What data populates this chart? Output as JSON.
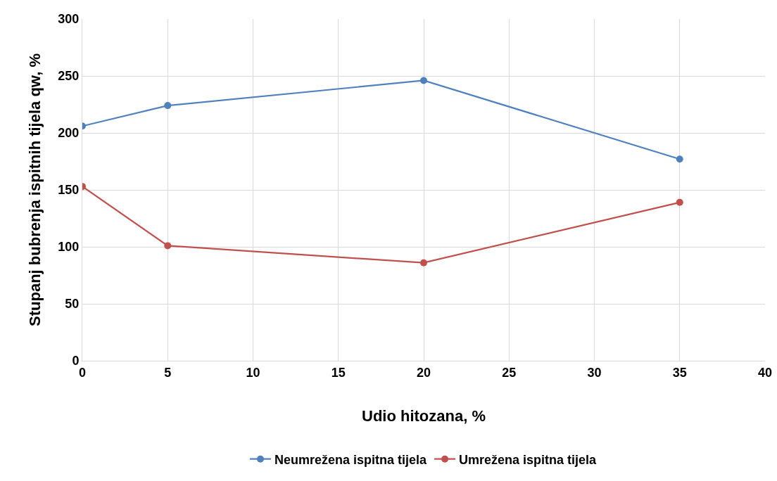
{
  "chart_data": {
    "type": "line",
    "xlabel": "Udio hitozana, %",
    "ylabel": "Stupanj bubrenja ispitnih tijela qw, %",
    "x": [
      0,
      5,
      20,
      35
    ],
    "series": [
      {
        "name": "Neumrežena ispitna tijela",
        "color": "#4f81bd",
        "values": [
          206,
          224,
          246,
          177
        ]
      },
      {
        "name": "Umrežena ispitna tijela",
        "color": "#c0504d",
        "values": [
          153,
          101,
          86,
          139
        ]
      }
    ],
    "xlim": [
      0,
      40
    ],
    "xticks": [
      0,
      5,
      10,
      15,
      20,
      25,
      30,
      35,
      40
    ],
    "ylim": [
      0,
      300
    ],
    "yticks": [
      0,
      50,
      100,
      150,
      200,
      250,
      300
    ],
    "grid": true,
    "legend": "bottom",
    "marker": "circle",
    "line_style": "solid"
  }
}
